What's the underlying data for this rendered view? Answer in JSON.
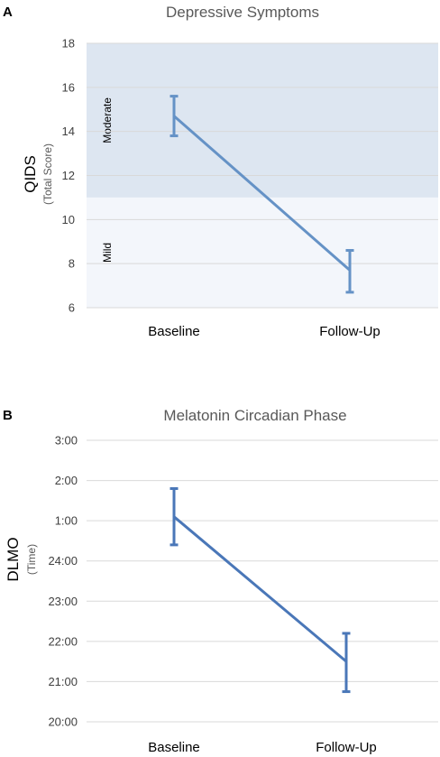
{
  "chart_data": [
    {
      "panel": "A",
      "type": "line",
      "title": "Depressive Symptoms",
      "ylabel": "QIDS",
      "ylabel_sub": "(Total Score)",
      "categories": [
        "Baseline",
        "Follow-Up"
      ],
      "values": [
        14.7,
        7.7
      ],
      "error_low": [
        13.8,
        6.7
      ],
      "error_high": [
        15.6,
        8.6
      ],
      "ylim": [
        6,
        18
      ],
      "yticks": [
        "6",
        "8",
        "10",
        "12",
        "14",
        "16",
        "18"
      ],
      "ytick_values": [
        6,
        8,
        10,
        12,
        14,
        16,
        18
      ],
      "bands": [
        {
          "label": "Mild",
          "from": 6,
          "to": 11,
          "color": "#f3f6fb"
        },
        {
          "label": "Moderate",
          "from": 11,
          "to": 18,
          "color": "#dde6f1"
        }
      ],
      "line_color": "#6592c6",
      "grid": true
    },
    {
      "panel": "B",
      "type": "line",
      "title": "Melatonin Circadian Phase",
      "ylabel": "DLMO",
      "ylabel_sub": "(Time)",
      "categories": [
        "Baseline",
        "Follow-Up"
      ],
      "values": [
        25.1,
        21.5
      ],
      "error_low": [
        24.4,
        20.75
      ],
      "error_high": [
        25.8,
        22.2
      ],
      "ylim": [
        20,
        27
      ],
      "yticks": [
        "20:00",
        "21:00",
        "22:00",
        "23:00",
        "24:00",
        "1:00",
        "2:00",
        "3:00"
      ],
      "ytick_values": [
        20,
        21,
        22,
        23,
        24,
        25,
        26,
        27
      ],
      "line_color": "#4a77b8",
      "grid": true
    }
  ]
}
